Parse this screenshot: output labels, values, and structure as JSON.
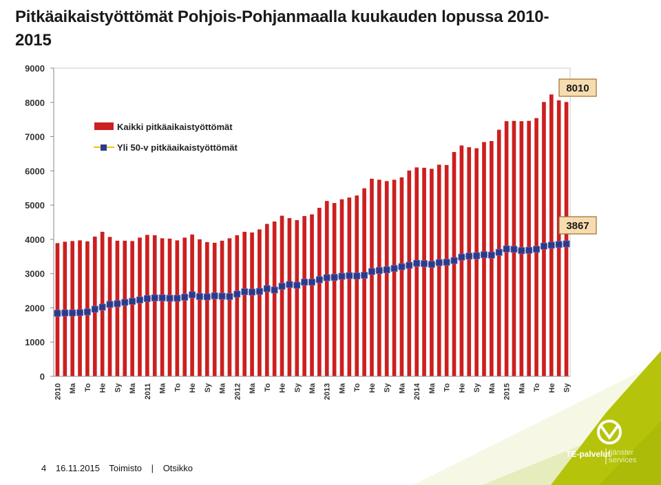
{
  "slide": {
    "title": "Pitkäaikaistyöttömät Pohjois-Pohjanmaalla kuukauden lopussa 2010-2015",
    "footer": {
      "page": "4",
      "date": "16.11.2015",
      "office": "Toimisto",
      "separator": "|",
      "subject": "Otsikko"
    },
    "logo": {
      "brand": "TE-palvelut",
      "secondary_line1": "tjänster",
      "secondary_line2": "services"
    },
    "colors": {
      "accent_green": "#b5c40a",
      "bar_red": "#cc1f1f",
      "marker_blue": "#2a3a8c",
      "line_yellow": "#f2c200",
      "callout_fill": "#f6ddb0",
      "callout_border": "#a06a2a"
    }
  },
  "chart_data": {
    "type": "bar",
    "title": "Pitkäaikaistyöttömät Pohjois-Pohjanmaalla kuukauden lopussa 2010-2015",
    "ylim": [
      0,
      9000
    ],
    "yticks": [
      "0",
      "1000",
      "2000",
      "3000",
      "4000",
      "5000",
      "6000",
      "7000",
      "8000",
      "9000"
    ],
    "grid": false,
    "legend_position": "top-left",
    "categories": [
      "2010",
      "",
      "Ma",
      "",
      "To",
      "",
      "He",
      "",
      "Sy",
      "",
      "Ma",
      "",
      "2011",
      "",
      "Ma",
      "",
      "To",
      "",
      "He",
      "",
      "Sy",
      "",
      "Ma",
      "",
      "2012",
      "",
      "Ma",
      "",
      "To",
      "",
      "He",
      "",
      "Sy",
      "",
      "Ma",
      "",
      "2013",
      "",
      "Ma",
      "",
      "To",
      "",
      "He",
      "",
      "Sy",
      "",
      "Ma",
      "",
      "2014",
      "",
      "Ma",
      "",
      "To",
      "",
      "He",
      "",
      "Sy",
      "",
      "Ma",
      "",
      "2015",
      "",
      "Ma",
      "",
      "To",
      "",
      "He",
      "",
      "Sy"
    ],
    "series": [
      {
        "name": "Kaikki pitkäaikaistyöttömät",
        "type": "bar",
        "values": [
          3890,
          3930,
          3950,
          3970,
          3940,
          4080,
          4220,
          4070,
          3960,
          3960,
          3950,
          4050,
          4130,
          4120,
          4030,
          4020,
          3970,
          4050,
          4140,
          4000,
          3920,
          3900,
          3960,
          4030,
          4120,
          4220,
          4200,
          4290,
          4450,
          4520,
          4690,
          4620,
          4560,
          4680,
          4730,
          4920,
          5120,
          5060,
          5170,
          5220,
          5280,
          5490,
          5770,
          5740,
          5700,
          5740,
          5810,
          6010,
          6100,
          6090,
          6060,
          6180,
          6170,
          6550,
          6740,
          6690,
          6660,
          6840,
          6870,
          7200,
          7450,
          7460,
          7450,
          7460,
          7540,
          8010,
          8230,
          8060,
          8010
        ]
      },
      {
        "name": "Yli 50-v pitkäaikaistyöttömät",
        "type": "line",
        "values": [
          1840,
          1850,
          1850,
          1860,
          1880,
          1960,
          2020,
          2100,
          2120,
          2160,
          2190,
          2230,
          2270,
          2290,
          2290,
          2280,
          2280,
          2310,
          2380,
          2330,
          2320,
          2350,
          2340,
          2330,
          2400,
          2470,
          2460,
          2480,
          2560,
          2520,
          2630,
          2680,
          2660,
          2750,
          2750,
          2820,
          2880,
          2890,
          2920,
          2940,
          2930,
          2950,
          3060,
          3090,
          3110,
          3150,
          3200,
          3240,
          3300,
          3290,
          3270,
          3320,
          3330,
          3380,
          3480,
          3510,
          3520,
          3550,
          3540,
          3620,
          3720,
          3710,
          3670,
          3680,
          3710,
          3800,
          3830,
          3850,
          3867
        ]
      }
    ],
    "annotations": [
      {
        "text": "8010",
        "series": "Kaikki pitkäaikaistyöttömät",
        "value": 8010
      },
      {
        "text": "3867",
        "series": "Yli 50-v pitkäaikaistyöttömät",
        "value": 3867
      }
    ]
  }
}
